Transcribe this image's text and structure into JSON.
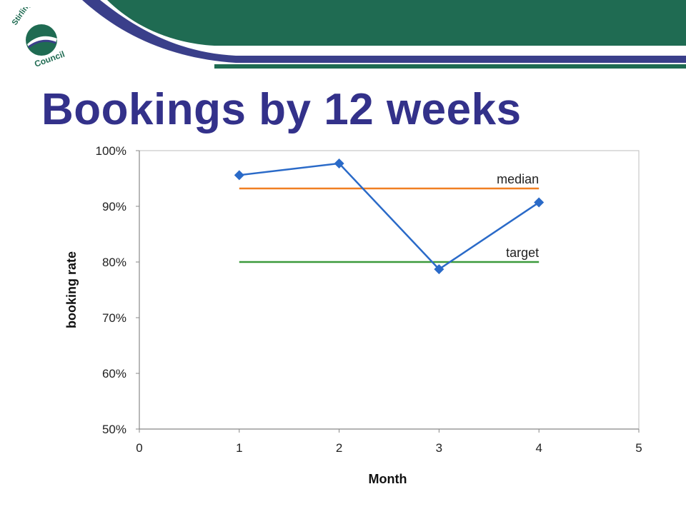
{
  "header": {
    "logo_text_line1": "Stirling",
    "logo_text_line2": "Council",
    "colors": {
      "band_green": "#1f6b52",
      "band_purple": "#3a3f8a"
    }
  },
  "slide": {
    "title": "Bookings by 12 weeks"
  },
  "chart_data": {
    "type": "line",
    "xlabel": "Month",
    "ylabel": "booking rate",
    "xlim": [
      0,
      5
    ],
    "ylim": [
      0.5,
      1.0
    ],
    "x_ticks": [
      0,
      1,
      2,
      3,
      4,
      5
    ],
    "y_ticks": [
      0.5,
      0.6,
      0.7,
      0.8,
      0.9,
      1.0
    ],
    "y_tick_labels": [
      "50%",
      "60%",
      "70%",
      "80%",
      "90%",
      "100%"
    ],
    "series": [
      {
        "x": [
          1,
          2,
          3,
          4
        ],
        "y": [
          0.956,
          0.977,
          0.787,
          0.907
        ],
        "color": "#2a6ac8",
        "marker": "diamond"
      }
    ],
    "reference_lines": [
      {
        "label": "median",
        "y": 0.932,
        "x_range": [
          1,
          4
        ],
        "color": "#f07f22"
      },
      {
        "label": "target",
        "y": 0.8,
        "x_range": [
          1,
          4
        ],
        "color": "#3c9a3c"
      }
    ],
    "grid": false,
    "legend": "none"
  }
}
